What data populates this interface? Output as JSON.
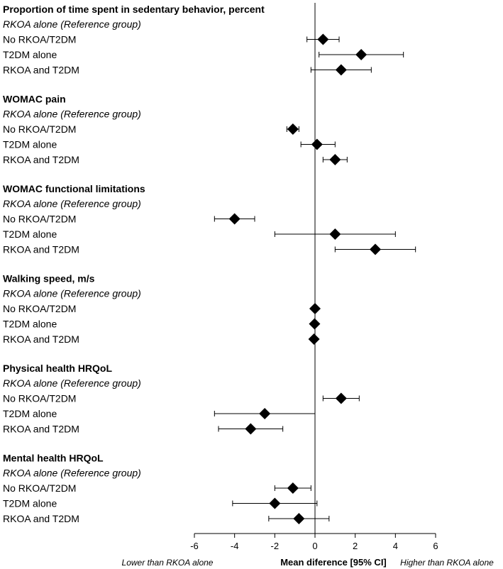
{
  "chart_data": {
    "type": "forest",
    "xlabel": "Mean diference [95% CI]",
    "left_note": "Lower than RKOA alone",
    "right_note": "Higher than RKOA alone",
    "xlim": [
      -6,
      6
    ],
    "xticks": [
      -6,
      -4,
      -2,
      0,
      2,
      4,
      6
    ],
    "reference_line": 0,
    "sections": [
      {
        "title": "Proportion of time spent in sedentary behavior, percent",
        "reference_label": "RKOA alone (Reference group)",
        "rows": [
          {
            "label": "No RKOA/T2DM",
            "estimate": 0.4,
            "ci": [
              -0.4,
              1.2
            ]
          },
          {
            "label": "T2DM alone",
            "estimate": 2.3,
            "ci": [
              0.2,
              4.4
            ]
          },
          {
            "label": "RKOA and T2DM",
            "estimate": 1.3,
            "ci": [
              -0.2,
              2.8
            ]
          }
        ]
      },
      {
        "title": "WOMAC pain",
        "reference_label": "RKOA alone (Reference group)",
        "rows": [
          {
            "label": "No RKOA/T2DM",
            "estimate": -1.1,
            "ci": [
              -1.4,
              -0.8
            ]
          },
          {
            "label": "T2DM alone",
            "estimate": 0.1,
            "ci": [
              -0.7,
              1.0
            ]
          },
          {
            "label": "RKOA and T2DM",
            "estimate": 1.0,
            "ci": [
              0.4,
              1.6
            ]
          }
        ]
      },
      {
        "title": "WOMAC functional limitations",
        "reference_label": "RKOA alone (Reference group)",
        "rows": [
          {
            "label": "No RKOA/T2DM",
            "estimate": -4.0,
            "ci": [
              -5.0,
              -3.0
            ]
          },
          {
            "label": "T2DM alone",
            "estimate": 1.0,
            "ci": [
              -2.0,
              4.0
            ]
          },
          {
            "label": "RKOA and T2DM",
            "estimate": 3.0,
            "ci": [
              1.0,
              5.0
            ]
          }
        ]
      },
      {
        "title": "Walking speed, m/s",
        "reference_label": "RKOA alone (Reference group)",
        "rows": [
          {
            "label": "No RKOA/T2DM",
            "estimate": 0.0,
            "ci": [
              -0.05,
              0.05
            ]
          },
          {
            "label": "T2DM alone",
            "estimate": -0.02,
            "ci": [
              -0.07,
              0.03
            ]
          },
          {
            "label": "RKOA and T2DM",
            "estimate": -0.05,
            "ci": [
              -0.1,
              0.0
            ]
          }
        ]
      },
      {
        "title": "Physical health HRQoL",
        "reference_label": "RKOA alone (Reference group)",
        "rows": [
          {
            "label": "No RKOA/T2DM",
            "estimate": 1.3,
            "ci": [
              0.4,
              2.2
            ]
          },
          {
            "label": "T2DM alone",
            "estimate": -2.5,
            "ci": [
              -5.0,
              0.0
            ]
          },
          {
            "label": "RKOA and T2DM",
            "estimate": -3.2,
            "ci": [
              -4.8,
              -1.6
            ]
          }
        ]
      },
      {
        "title": "Mental health HRQoL",
        "reference_label": "RKOA alone (Reference group)",
        "rows": [
          {
            "label": "No RKOA/T2DM",
            "estimate": -1.1,
            "ci": [
              -2.0,
              -0.2
            ]
          },
          {
            "label": "T2DM alone",
            "estimate": -2.0,
            "ci": [
              -4.1,
              0.1
            ]
          },
          {
            "label": "RKOA and T2DM",
            "estimate": -0.8,
            "ci": [
              -2.3,
              0.7
            ]
          }
        ]
      }
    ]
  }
}
